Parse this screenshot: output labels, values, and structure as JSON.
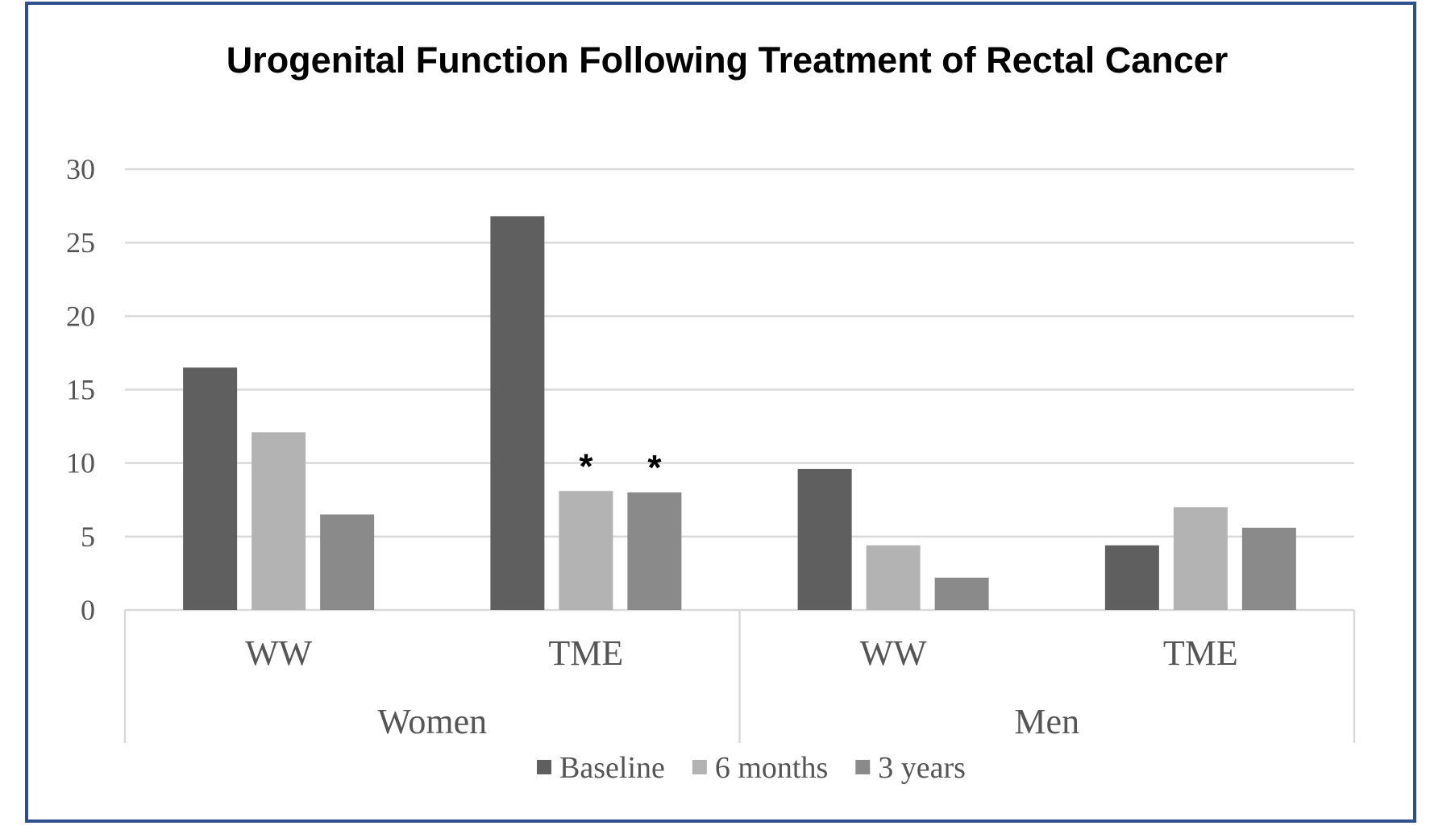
{
  "chart_data": {
    "type": "bar",
    "title": "Urogenital Function Following Treatment of Rectal Cancer",
    "xlabel": "",
    "ylabel": "",
    "ylim": [
      0,
      30
    ],
    "yticks": [
      0,
      5,
      10,
      15,
      20,
      25,
      30
    ],
    "grid": true,
    "legend_position": "bottom",
    "categories": [
      "WW",
      "TME",
      "WW",
      "TME"
    ],
    "groups": [
      {
        "label": "Women",
        "categories": [
          "WW",
          "TME"
        ]
      },
      {
        "label": "Men",
        "categories": [
          "WW",
          "TME"
        ]
      }
    ],
    "series": [
      {
        "name": "Baseline",
        "color": "#5f5f5f",
        "values": [
          16.5,
          26.8,
          9.6,
          4.4
        ]
      },
      {
        "name": "6 months",
        "color": "#b3b3b3",
        "values": [
          12.1,
          8.1,
          4.4,
          7.0
        ]
      },
      {
        "name": "3 years",
        "color": "#8a8a8a",
        "values": [
          6.5,
          8.0,
          2.2,
          5.6
        ]
      }
    ],
    "annotations": [
      {
        "text": "*",
        "category_index": 1,
        "series_index": 1
      },
      {
        "text": "*",
        "category_index": 1,
        "series_index": 2
      }
    ]
  }
}
